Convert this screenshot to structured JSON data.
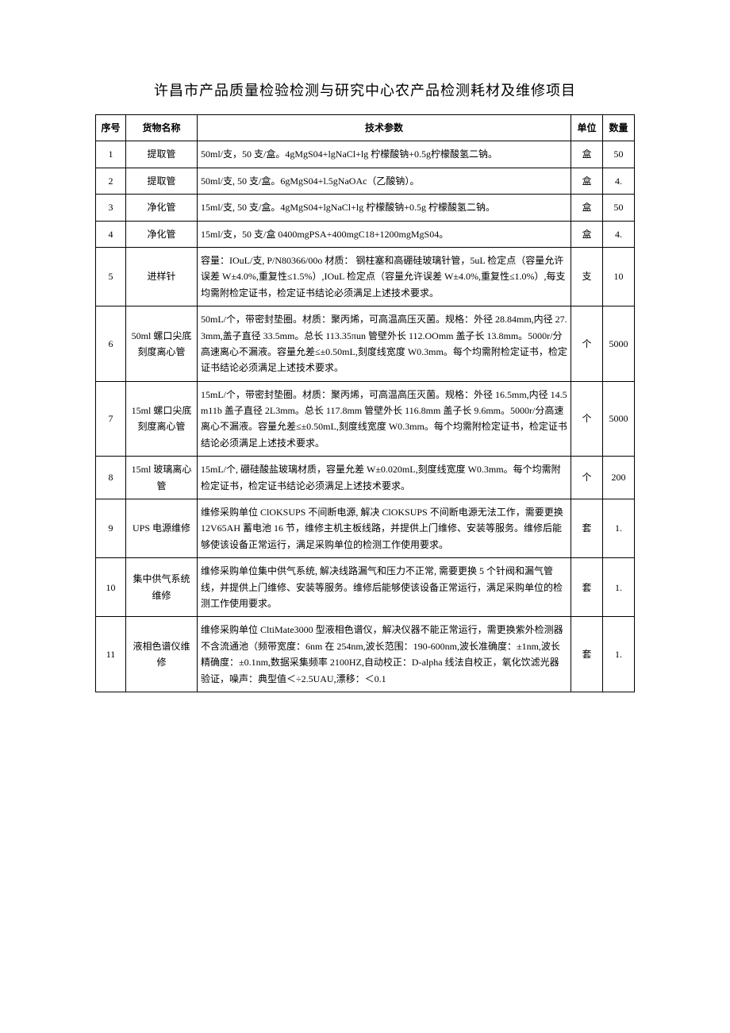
{
  "title": "许昌市产品质量检验检测与研究中心农产品检测耗材及维修项目",
  "columns": [
    "序号",
    "货物名称",
    "技术参数",
    "单位",
    "数量"
  ],
  "rows": [
    {
      "idx": "1",
      "name": "提取管",
      "spec": "50ml/支，50 支/盒。4gMgS04+lgNaCl+lg 柠檬酸钠+0.5g柠檬酸氢二钠。",
      "unit": "盒",
      "qty": "50"
    },
    {
      "idx": "2",
      "name": "提取管",
      "spec": "50ml/支, 50 支/盒。6gMgS04+l.5gNaOAc（乙酸钠）。",
      "unit": "盒",
      "qty": "4."
    },
    {
      "idx": "3",
      "name": "净化管",
      "spec": "15ml/支, 50 支/盒。4gMgS04+lgNaCl+lg 柠檬酸钠+0.5g 柠檬酸氢二钠。",
      "unit": "盒",
      "qty": "50"
    },
    {
      "idx": "4",
      "name": "净化管",
      "spec": "15ml/支，50 支/盒 0400mgPSA+400mgC18+1200mgMgS04。",
      "unit": "盒",
      "qty": "4."
    },
    {
      "idx": "5",
      "name": "进样针",
      "spec": "容量：IOuL/支, P/N80366/00o 材质： 钢柱塞和高硼硅玻璃针管，5uL 检定点（容量允许误差 W±4.0%,重复性≤1.5%）,IOuL 检定点（容量允许误差 W±4.0%,重复性≤1.0%）,每支均需附检定证书，检定证书结论必须满足上述技术要求。",
      "unit": "支",
      "qty": "10"
    },
    {
      "idx": "6",
      "name": "50ml 螺口尖底刻度离心管",
      "spec": "50mL/个，带密封垫圈。材质：聚丙烯，可高温高压灭菌。规格：外径 28.84mm,内径 27.3mm,盖子直径 33.5mm。总长 113.35πun 管壁外长 112.OOmm 盖子长 13.8mm。5000r/分高速离心不漏液。容量允差≤±0.50mL,刻度线宽度 W0.3mm。每个均需附检定证书，检定证书结论必须满足上述技术要求。",
      "unit": "个",
      "qty": "5000"
    },
    {
      "idx": "7",
      "name": "15ml 螺口尖底刻度离心管",
      "spec": "15mL/个，带密封垫圈。材质：聚丙烯，可高温高压灭菌。规格：外径 16.5mm,内径 14.5m11b 盖子直径 2L3mm。总长 117.8mm 管壁外长 116.8mm 盖子长 9.6mm。5000r/分高速离心不漏液。容量允差≤±0.50mL,刻度线宽度 W0.3mm。每个均需附检定证书，检定证书结论必须满足上述技术要求。",
      "unit": "个",
      "qty": "5000"
    },
    {
      "idx": "8",
      "name": "15ml 玻璃离心管",
      "spec": "15mL/个, 硼硅酸盐玻璃材质，容量允差 W±0.020mL,刻度线宽度 W0.3mm。每个均需附检定证书，检定证书结论必须满足上述技术要求。",
      "unit": "个",
      "qty": "200"
    },
    {
      "idx": "9",
      "name": "UPS 电源维修",
      "spec": "维修采购单位 ClOKSUPS 不间断电源, 解决 ClOKSUPS 不间断电源无法工作，需要更换 12V65AH 蓄电池 16 节，维修主机主板线路，并提供上门维修、安装等服务。维修后能够使该设备正常运行，满足采购单位的检测工作使用要求。",
      "unit": "套",
      "qty": "1."
    },
    {
      "idx": "10",
      "name": "集中供气系统维修",
      "spec": "维修采购单位集中供气系统, 解决线路漏气和压力不正常, 需要更换 5 个针阀和漏气管线，并提供上门维修、安装等服务。维修后能够使该设备正常运行，满足采购单位的检测工作使用要求。",
      "unit": "套",
      "qty": "1."
    },
    {
      "idx": "11",
      "name": "液相色谱仪维修",
      "spec": "维修采购单位 CltiMate3000 型液相色谱仪，解决仪器不能正常运行，需更换紫外检测器不含流通池（频带宽度：6nm 在 254nm,波长范围：190-600nm,波长准确度：±1nm,波长精确度：±0.1nm,数据采集频率 2100HZ,自动校正：D-alpha 线法自校正，氧化饮滤光器验证，噪声：典型值＜÷2.5UAU,漂移：＜0.1",
      "unit": "套",
      "qty": "1."
    }
  ]
}
